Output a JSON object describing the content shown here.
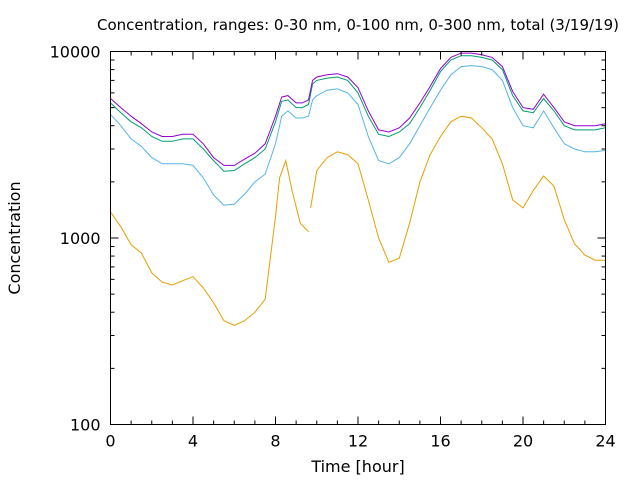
{
  "chart_data": {
    "type": "line",
    "title": "Concentration, ranges: 0-30 nm, 0-100 nm, 0-300 nm, total (3/19/19)",
    "xlabel": "Time [hour]",
    "ylabel": "Concentration",
    "xlim": [
      0,
      24
    ],
    "ylim": [
      100,
      10000
    ],
    "yscale": "log",
    "grid": false,
    "legend": "none",
    "x_ticks": [
      0,
      4,
      8,
      12,
      16,
      20,
      24
    ],
    "x_tick_labels": [
      "0",
      "4",
      "8",
      "12",
      "16",
      "20",
      "24"
    ],
    "y_ticks": [
      100,
      1000,
      10000
    ],
    "y_tick_labels": [
      "100",
      "1000",
      "10000"
    ],
    "series": [
      {
        "color": "#e69f00",
        "x": [
          0,
          0.5,
          1,
          1.5,
          2,
          2.5,
          3,
          3.5,
          4,
          4.5,
          5,
          5.5,
          6,
          6.5,
          7,
          7.5,
          8,
          8.2,
          8.5,
          8.8,
          9.2,
          9.6,
          null,
          9.7,
          10,
          10.5,
          11,
          11.5,
          12,
          12.5,
          13,
          13.5,
          14,
          14.5,
          15,
          15.5,
          16,
          16.5,
          17,
          17.5,
          18,
          18.5,
          19,
          19.5,
          20,
          20.5,
          21,
          21.5,
          22,
          22.5,
          23,
          23.5,
          24
        ],
        "y": [
          1380,
          1150,
          920,
          830,
          650,
          580,
          560,
          590,
          620,
          540,
          450,
          360,
          340,
          360,
          400,
          470,
          1300,
          2100,
          2600,
          1800,
          1200,
          1080,
          null,
          1450,
          2300,
          2700,
          2900,
          2800,
          2500,
          1600,
          1000,
          740,
          780,
          1200,
          2000,
          2800,
          3500,
          4200,
          4500,
          4400,
          3900,
          3400,
          2500,
          1600,
          1450,
          1800,
          2150,
          1900,
          1250,
          930,
          810,
          760,
          760
        ]
      },
      {
        "color": "#56b4e9",
        "x": [
          0,
          0.5,
          1,
          1.5,
          2,
          2.5,
          3,
          3.5,
          4,
          4.5,
          5,
          5.5,
          6,
          6.5,
          7,
          7.5,
          8,
          8.3,
          8.6,
          9,
          9.3,
          9.6,
          9.8,
          10,
          10.5,
          11,
          11.5,
          12,
          12.5,
          13,
          13.5,
          14,
          14.5,
          15,
          15.5,
          16,
          16.5,
          17,
          17.5,
          18,
          18.5,
          19,
          19.5,
          20,
          20.5,
          21,
          21.5,
          22,
          22.5,
          23,
          23.5,
          24
        ],
        "y": [
          4600,
          4000,
          3400,
          3100,
          2700,
          2500,
          2500,
          2500,
          2450,
          2100,
          1700,
          1500,
          1520,
          1720,
          2000,
          2200,
          3200,
          4500,
          4800,
          4400,
          4400,
          4500,
          5500,
          5800,
          6200,
          6300,
          6000,
          5200,
          3500,
          2600,
          2500,
          2700,
          3200,
          4000,
          5000,
          6200,
          7500,
          8300,
          8400,
          8300,
          8000,
          7000,
          5000,
          4000,
          3900,
          4800,
          3900,
          3200,
          3000,
          2900,
          2900,
          2950
        ]
      },
      {
        "color": "#009e73",
        "x": [
          0,
          0.5,
          1,
          1.5,
          2,
          2.5,
          3,
          3.5,
          4,
          4.5,
          5,
          5.5,
          6,
          6.5,
          7,
          7.5,
          8,
          8.3,
          8.6,
          9,
          9.3,
          9.6,
          9.8,
          10,
          10.5,
          11,
          11.5,
          12,
          12.5,
          13,
          13.5,
          14,
          14.5,
          15,
          15.5,
          16,
          16.5,
          17,
          17.5,
          18,
          18.5,
          19,
          19.5,
          20,
          20.5,
          21,
          21.5,
          22,
          22.5,
          23,
          23.5,
          24
        ],
        "y": [
          5300,
          4700,
          4200,
          3900,
          3500,
          3300,
          3300,
          3400,
          3400,
          3000,
          2600,
          2280,
          2300,
          2500,
          2700,
          3000,
          4200,
          5400,
          5500,
          5000,
          5000,
          5200,
          6700,
          7000,
          7200,
          7300,
          7000,
          6000,
          4500,
          3600,
          3500,
          3700,
          4100,
          5000,
          6200,
          7800,
          9000,
          9500,
          9500,
          9300,
          9000,
          8000,
          5800,
          4800,
          4700,
          5600,
          4800,
          4000,
          3800,
          3800,
          3800,
          3900
        ]
      },
      {
        "color": "#9400d3",
        "x": [
          0,
          0.5,
          1,
          1.5,
          2,
          2.5,
          3,
          3.5,
          4,
          4.5,
          5,
          5.5,
          6,
          6.5,
          7,
          7.5,
          8,
          8.3,
          8.6,
          9,
          9.3,
          9.6,
          9.8,
          10,
          10.5,
          11,
          11.5,
          12,
          12.5,
          13,
          13.5,
          14,
          14.5,
          15,
          15.5,
          16,
          16.5,
          17,
          17.5,
          18,
          18.5,
          19,
          19.5,
          20,
          20.5,
          21,
          21.5,
          22,
          22.5,
          23,
          23.5,
          24
        ],
        "y": [
          5600,
          5000,
          4500,
          4100,
          3700,
          3500,
          3500,
          3600,
          3600,
          3200,
          2700,
          2450,
          2450,
          2650,
          2850,
          3200,
          4500,
          5700,
          5800,
          5300,
          5300,
          5500,
          7000,
          7300,
          7500,
          7600,
          7300,
          6400,
          4800,
          3800,
          3700,
          3900,
          4400,
          5300,
          6500,
          8100,
          9300,
          9800,
          9800,
          9600,
          9300,
          8300,
          6100,
          5000,
          4900,
          5900,
          5000,
          4200,
          4000,
          4000,
          4000,
          4100
        ]
      }
    ]
  }
}
